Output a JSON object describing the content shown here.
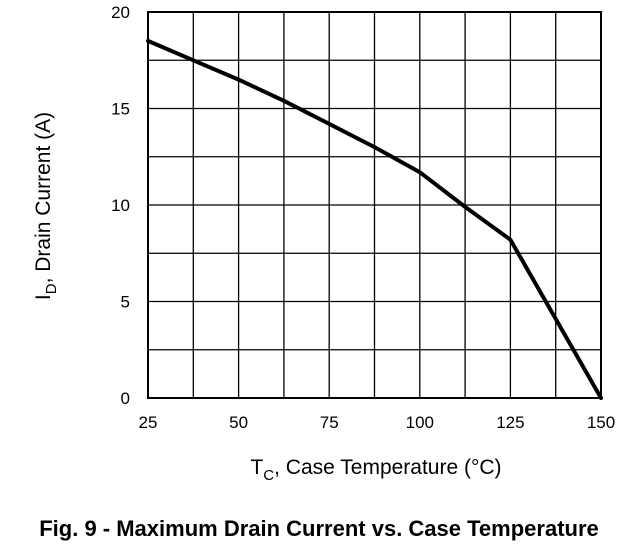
{
  "chart_data": {
    "type": "line",
    "title": "Fig. 9 - Maximum Drain Current vs. Case Temperature",
    "xlabel": {
      "main": "T",
      "sub": "C",
      "rest": ", Case Temperature (°C)"
    },
    "ylabel": {
      "main": "I",
      "sub": "D",
      "rest": ", Drain Current (A)"
    },
    "xlim": [
      25,
      150
    ],
    "ylim": [
      0,
      20
    ],
    "x_ticks": [
      25,
      50,
      75,
      100,
      125,
      150
    ],
    "y_ticks": [
      0,
      5,
      10,
      15,
      20
    ],
    "grid": true,
    "series": [
      {
        "x": [
          25,
          37.5,
          50,
          62.5,
          75,
          87.5,
          100,
          112.5,
          125,
          137.5,
          150
        ],
        "y": [
          18.5,
          17.5,
          16.5,
          15.4,
          14.2,
          13.0,
          11.7,
          9.9,
          8.2,
          4.1,
          0
        ]
      }
    ]
  }
}
